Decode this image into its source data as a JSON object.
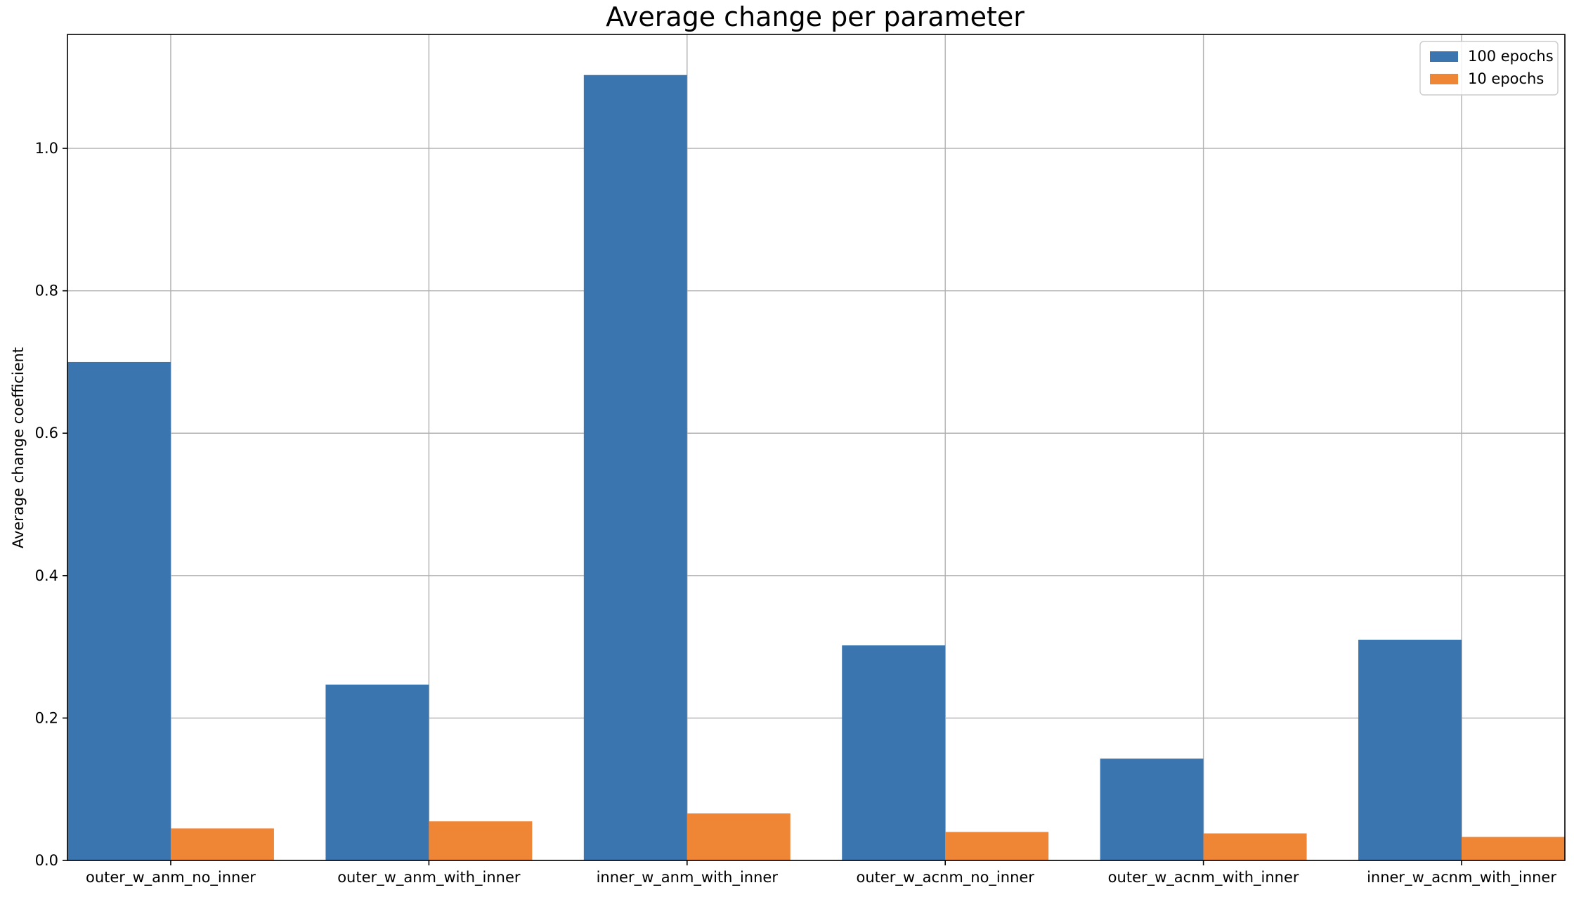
{
  "chart_data": {
    "type": "bar",
    "title": "Average change per parameter",
    "xlabel": "",
    "ylabel": "Average change coefficient",
    "categories": [
      "outer_w_anm_no_inner",
      "outer_w_anm_with_inner",
      "inner_w_anm_with_inner",
      "outer_w_acnm_no_inner",
      "outer_w_acnm_with_inner",
      "inner_w_acnm_with_inner"
    ],
    "series": [
      {
        "name": "100 epochs",
        "color": "#3b75af",
        "values": [
          0.7,
          0.247,
          1.103,
          0.302,
          0.143,
          0.31
        ]
      },
      {
        "name": "10 epochs",
        "color": "#ef8636",
        "values": [
          0.045,
          0.055,
          0.066,
          0.04,
          0.038,
          0.033
        ]
      }
    ],
    "ylim": [
      0,
      1.16
    ],
    "yticks": [
      "0.0",
      "0.2",
      "0.4",
      "0.6",
      "0.8",
      "1.0"
    ],
    "grid": true,
    "legend": "top-right"
  }
}
